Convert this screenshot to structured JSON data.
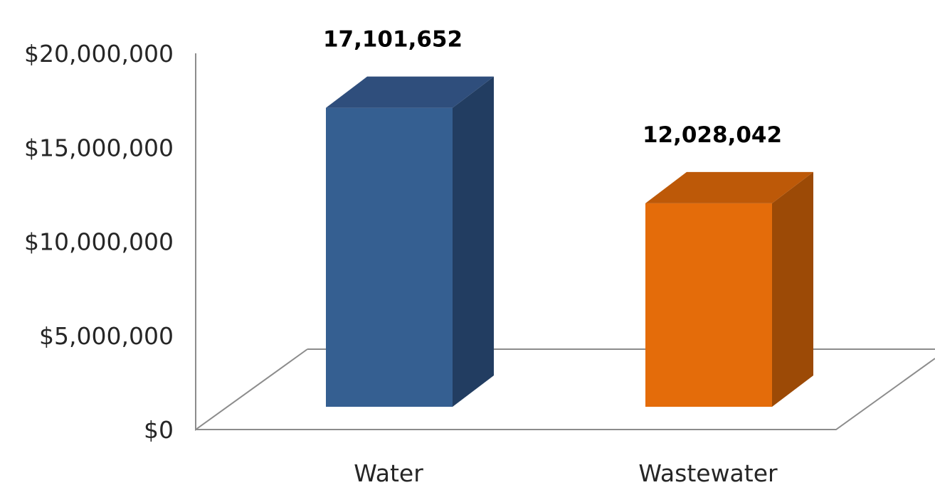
{
  "chart_data": {
    "type": "bar",
    "style": "3d-column",
    "categories": [
      "Water",
      "Wastewater"
    ],
    "values": [
      17101652,
      12028042
    ],
    "data_labels": [
      "17,101,652",
      "12,028,042"
    ],
    "ylim": [
      0,
      20000000
    ],
    "yticks": [
      0,
      5000000,
      10000000,
      15000000,
      20000000
    ],
    "ytick_labels": [
      "$0",
      "$5,000,000",
      "$10,000,000",
      "$15,000,000",
      "$20,000,000"
    ],
    "title": "",
    "xlabel": "",
    "ylabel": "",
    "grid": false,
    "legend": "none",
    "colors": {
      "Water": {
        "front": "#355f91",
        "top": "#2f4e7c",
        "side": "#223d61"
      },
      "Wastewater": {
        "front": "#e46c0a",
        "top": "#bd5908",
        "side": "#9c4a06"
      }
    },
    "axis_color": "#8c8c8c",
    "label_color": "#262626"
  }
}
